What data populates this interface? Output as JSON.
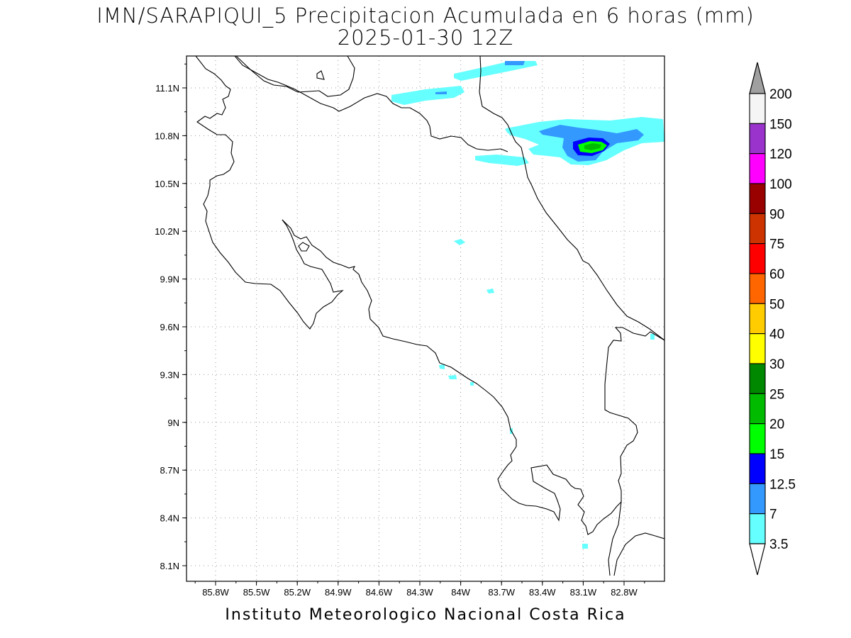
{
  "title": {
    "line1": "IMN/SARAPIQUI_5 Precipitacion Acumulada en 6 horas (mm)",
    "line2": "2025-01-30 12Z"
  },
  "footer": "Instituto Meteorologico Nacional Costa Rica",
  "map": {
    "lat_labels": [
      "11.1N",
      "10.8N",
      "10.5N",
      "10.2N",
      "9.9N",
      "9.6N",
      "9.3N",
      "9N",
      "8.7N",
      "8.4N",
      "8.1N"
    ],
    "lon_labels": [
      "85.8W",
      "85.5W",
      "85.2W",
      "84.9W",
      "84.6W",
      "84.3W",
      "84W",
      "83.7W",
      "83.4W",
      "83.1W",
      "82.8W"
    ],
    "grid": true
  },
  "colorbar": {
    "labels": [
      "200",
      "150",
      "120",
      "100",
      "90",
      "75",
      "60",
      "50",
      "40",
      "30",
      "25",
      "20",
      "15",
      "12.5",
      "7",
      "3.5"
    ],
    "colors": [
      "#f5f5f5",
      "#9933cc",
      "#ff00ff",
      "#990000",
      "#cc3300",
      "#ff0000",
      "#ff6600",
      "#ffcc00",
      "#ffff00",
      "#008800",
      "#00bb00",
      "#00ff00",
      "#0000ff",
      "#3399ff",
      "#66ffff"
    ],
    "over_color": "#a0a0a0",
    "under_color": "#ffffff"
  }
}
